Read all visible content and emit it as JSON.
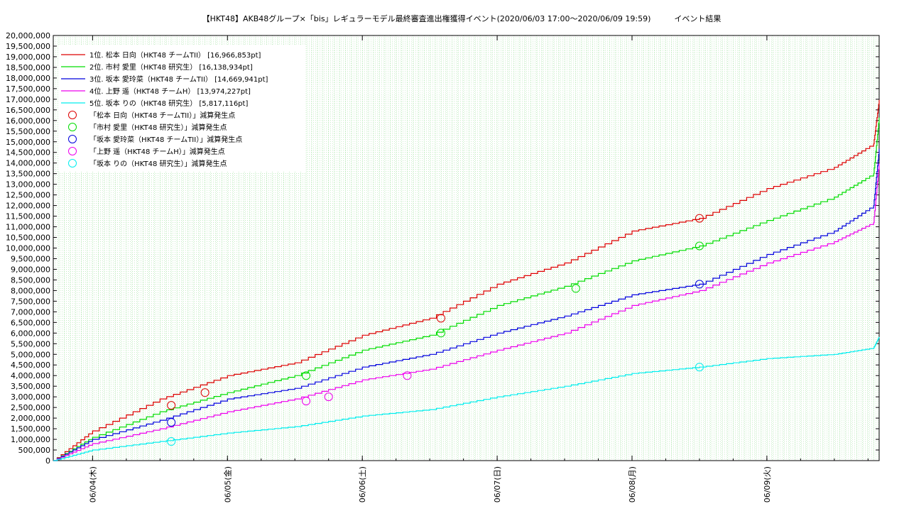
{
  "chart_data": {
    "type": "line",
    "title": "【HKT48】AKB48グループ×「bis」レギュラーモデル最終審査進出権獲得イベント(2020/06/03 17:00〜2020/06/09 19:59)　　　イベント結果",
    "y_ticks": [
      "0",
      "500,000",
      "1,000,000",
      "1,500,000",
      "2,000,000",
      "2,500,000",
      "3,000,000",
      "3,500,000",
      "4,000,000",
      "4,500,000",
      "5,000,000",
      "5,500,000",
      "6,000,000",
      "6,500,000",
      "7,000,000",
      "7,500,000",
      "8,000,000",
      "8,500,000",
      "9,000,000",
      "9,500,000",
      "10,000,000",
      "10,500,000",
      "11,000,000",
      "11,500,000",
      "12,000,000",
      "12,500,000",
      "13,000,000",
      "13,500,000",
      "14,000,000",
      "14,500,000",
      "15,000,000",
      "15,500,000",
      "16,000,000",
      "16,500,000",
      "17,000,000",
      "17,500,000",
      "18,000,000",
      "18,500,000",
      "19,000,000",
      "19,500,000",
      "20,000,000"
    ],
    "x_ticks": [
      "06/04(木)",
      "06/05(金)",
      "06/06(土)",
      "06/07(日)",
      "06/08(月)",
      "06/09(火)"
    ],
    "ylim": [
      0,
      20000000
    ],
    "grid": true,
    "legend": "top-left",
    "series": [
      {
        "name": "1位. 松本 日向（HKT48 チームTII） [16,966,853pt]",
        "color": "#dd0000",
        "x": [
          "06/03 17:00",
          "06/04 00:00",
          "06/04 12:00",
          "06/05 00:00",
          "06/05 12:00",
          "06/06 00:00",
          "06/06 12:00",
          "06/07 00:00",
          "06/07 12:00",
          "06/08 00:00",
          "06/08 12:00",
          "06/09 00:00",
          "06/09 12:00",
          "06/09 19:00",
          "06/09 19:59"
        ],
        "values": [
          0,
          1400000,
          2900000,
          4000000,
          4600000,
          5900000,
          6700000,
          8300000,
          9300000,
          10800000,
          11400000,
          12800000,
          13800000,
          14900000,
          16966853
        ]
      },
      {
        "name": "2位. 市村 愛里（HKT48 研究生） [16,138,934pt]",
        "color": "#00dd00",
        "x": [
          "06/03 17:00",
          "06/04 00:00",
          "06/04 12:00",
          "06/05 00:00",
          "06/05 12:00",
          "06/06 00:00",
          "06/06 12:00",
          "06/07 00:00",
          "06/07 12:00",
          "06/08 00:00",
          "06/08 12:00",
          "06/09 00:00",
          "06/09 12:00",
          "06/09 19:00",
          "06/09 19:59"
        ],
        "values": [
          0,
          1100000,
          2300000,
          3200000,
          4000000,
          5200000,
          5900000,
          7300000,
          8200000,
          9400000,
          10100000,
          11300000,
          12400000,
          13500000,
          16138934
        ]
      },
      {
        "name": "3位. 坂本 愛玲菜（HKT48 チームTII） [14,669,941pt]",
        "color": "#0000dd",
        "x": [
          "06/03 17:00",
          "06/04 00:00",
          "06/04 12:00",
          "06/05 00:00",
          "06/05 12:00",
          "06/06 00:00",
          "06/06 12:00",
          "06/07 00:00",
          "06/07 12:00",
          "06/08 00:00",
          "06/08 12:00",
          "06/09 00:00",
          "06/09 12:00",
          "06/09 19:00",
          "06/09 19:59"
        ],
        "values": [
          0,
          1000000,
          1900000,
          2900000,
          3400000,
          4400000,
          5000000,
          6000000,
          6800000,
          7800000,
          8300000,
          9700000,
          10800000,
          12000000,
          14669941
        ]
      },
      {
        "name": "4位. 上野 遥（HKT48 チームH） [13,974,227pt]",
        "color": "#ee00ee",
        "x": [
          "06/03 17:00",
          "06/04 00:00",
          "06/04 12:00",
          "06/05 00:00",
          "06/05 12:00",
          "06/06 00:00",
          "06/06 12:00",
          "06/07 00:00",
          "06/07 12:00",
          "06/08 00:00",
          "06/08 12:00",
          "06/09 00:00",
          "06/09 12:00",
          "06/09 19:00",
          "06/09 19:59"
        ],
        "values": [
          0,
          800000,
          1500000,
          2300000,
          2900000,
          3800000,
          4300000,
          5200000,
          6000000,
          7300000,
          8000000,
          9300000,
          10300000,
          11200000,
          13974227
        ]
      },
      {
        "name": "5位. 坂本 りの（HKT48 研究生） [5,817,116pt]",
        "color": "#00eeee",
        "x": [
          "06/03 17:00",
          "06/04 00:00",
          "06/04 12:00",
          "06/05 00:00",
          "06/05 12:00",
          "06/06 00:00",
          "06/06 12:00",
          "06/07 00:00",
          "06/07 12:00",
          "06/08 00:00",
          "06/08 12:00",
          "06/09 00:00",
          "06/09 12:00",
          "06/09 19:00",
          "06/09 19:59"
        ],
        "values": [
          0,
          500000,
          900000,
          1300000,
          1600000,
          2100000,
          2400000,
          3000000,
          3500000,
          4100000,
          4400000,
          4800000,
          5000000,
          5300000,
          5817116
        ]
      }
    ],
    "markers": [
      {
        "name": "「松本 日向（HKT48 チームTII）」減算発生点",
        "color": "#dd0000",
        "x": [
          "06/04 14:00",
          "06/04 20:00",
          "06/06 14:00",
          "06/08 12:00"
        ],
        "values": [
          2600000,
          3200000,
          6700000,
          11400000
        ]
      },
      {
        "name": "「市村 愛里（HKT48 研究生）」減算発生点",
        "color": "#00dd00",
        "x": [
          "06/05 14:00",
          "06/06 14:00",
          "06/07 14:00",
          "06/08 12:00"
        ],
        "values": [
          4000000,
          6000000,
          8100000,
          10100000
        ]
      },
      {
        "name": "「坂本 愛玲菜（HKT48 チームTII）」減算発生点",
        "color": "#0000dd",
        "x": [
          "06/04 14:00",
          "06/08 12:00"
        ],
        "values": [
          1800000,
          8300000
        ]
      },
      {
        "name": "「上野 遥（HKT48 チームH）」減算発生点",
        "color": "#ee00ee",
        "x": [
          "06/05 14:00",
          "06/05 18:00",
          "06/06 08:00"
        ],
        "values": [
          2800000,
          3000000,
          4000000
        ]
      },
      {
        "name": "「坂本 りの（HKT48 研究生）」減算発生点",
        "color": "#00eeee",
        "x": [
          "06/04 14:00",
          "06/08 12:00"
        ],
        "values": [
          900000,
          4400000
        ]
      }
    ]
  }
}
